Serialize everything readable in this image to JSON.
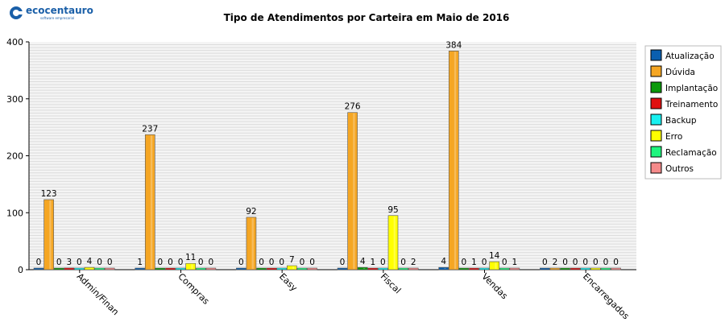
{
  "logo": {
    "name": "ecocentauro",
    "tagline": "software empresarial"
  },
  "chart_data": {
    "type": "bar",
    "title": "Tipo de Atendimentos por Carteira em Maio de 2016",
    "xlabel": "",
    "ylabel": "",
    "ylim": [
      0,
      400
    ],
    "yticks": [
      0,
      100,
      200,
      300,
      400
    ],
    "grid": true,
    "legend_position": "right",
    "categories": [
      "Admin/Finan",
      "Compras",
      "Easy",
      "Fiscal",
      "Vendas",
      "Encarregados"
    ],
    "series": [
      {
        "name": "Atualização",
        "color": "#0a5fb0",
        "values": [
          0,
          1,
          0,
          0,
          4,
          0
        ]
      },
      {
        "name": "Dúvida",
        "color": "#f5a623",
        "values": [
          123,
          237,
          92,
          276,
          384,
          2
        ]
      },
      {
        "name": "Implantação",
        "color": "#0b9a0b",
        "values": [
          0,
          0,
          0,
          4,
          0,
          0
        ]
      },
      {
        "name": "Treinamento",
        "color": "#e01010",
        "values": [
          3,
          0,
          0,
          1,
          1,
          0
        ]
      },
      {
        "name": "Backup",
        "color": "#19f0f0",
        "values": [
          0,
          0,
          0,
          0,
          0,
          0
        ]
      },
      {
        "name": "Erro",
        "color": "#ffff00",
        "values": [
          4,
          11,
          7,
          95,
          14,
          0
        ]
      },
      {
        "name": "Reclamação",
        "color": "#1ff57e",
        "values": [
          0,
          0,
          0,
          0,
          0,
          0
        ]
      },
      {
        "name": "Outros",
        "color": "#f58a8a",
        "values": [
          0,
          0,
          0,
          2,
          1,
          0
        ]
      }
    ]
  }
}
